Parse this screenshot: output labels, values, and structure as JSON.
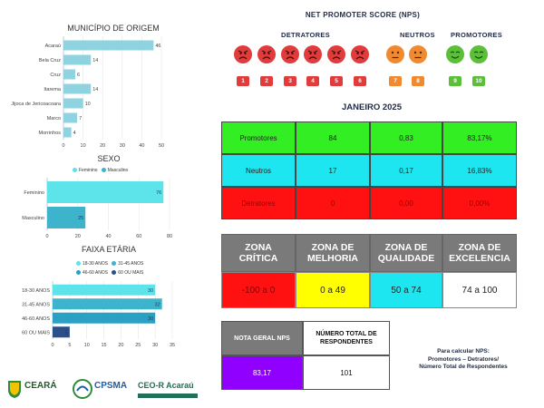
{
  "municipio": {
    "title": "MUNICÍPIO DE ORIGEM",
    "chart_data": {
      "type": "bar",
      "categories": [
        "Acaraú",
        "Bela Cruz",
        "Cruz",
        "Itarema",
        "Jijoca de Jericoacoara",
        "Marco",
        "Morrinhos"
      ],
      "values": [
        46,
        14,
        6,
        14,
        10,
        7,
        4
      ],
      "xlim": [
        0,
        50
      ],
      "xticks": [
        "0",
        "10",
        "20",
        "30",
        "40",
        "50"
      ]
    }
  },
  "sexo": {
    "title": "SEXO",
    "legend": [
      "Feminino",
      "Masculino"
    ],
    "chart_data": {
      "type": "bar",
      "categories": [
        "Feminino",
        "Masculino"
      ],
      "values": [
        76,
        25
      ],
      "colors": [
        "#5de3ea",
        "#3db3cc"
      ],
      "xlim": [
        0,
        80
      ],
      "xticks": [
        "0",
        "20",
        "40",
        "60",
        "80"
      ]
    }
  },
  "faixa": {
    "title": "FAIXA ETÁRIA",
    "legend": [
      "18-30 ANOS",
      "31-45 ANOS",
      "46-60 ANOS",
      "60 OU MAIS"
    ],
    "chart_data": {
      "type": "bar",
      "categories": [
        "18-30 ANOS",
        "31-45 ANOS",
        "46-60 ANOS",
        "60 OU MAIS"
      ],
      "values": [
        30,
        32,
        30,
        5
      ],
      "colors": [
        "#5de3ea",
        "#3db3cc",
        "#2aa0c5",
        "#2b4f8a"
      ],
      "xlim": [
        0,
        35
      ],
      "xticks": [
        "0",
        "5",
        "10",
        "15",
        "20",
        "25",
        "30",
        "35"
      ]
    }
  },
  "nps": {
    "title": "NET PROMOTER SCORE (NPS)",
    "detratores": "DETRATORES",
    "neutros": "NEUTROS",
    "promotores": "PROMOTORES",
    "scores": [
      "1",
      "2",
      "3",
      "4",
      "5",
      "6",
      "7",
      "8",
      "9",
      "10"
    ],
    "colors": {
      "detrator": "#e23b3b",
      "neutro": "#f0892f",
      "promotor": "#5bbf3a"
    }
  },
  "mes": "JANEIRO 2025",
  "resumo": [
    {
      "label": "Promotores",
      "count": "84",
      "ratio": "0,83",
      "pct": "83,17%",
      "color": "#33ee22"
    },
    {
      "label": "Neutros",
      "count": "17",
      "ratio": "0,17",
      "pct": "16,83%",
      "color": "#1de6f0"
    },
    {
      "label": "Detratores",
      "count": "0",
      "ratio": "0,00",
      "pct": "0,00%",
      "color": "#ff1111"
    }
  ],
  "zonas": {
    "headers": [
      "ZONA CRÍTICA",
      "ZONA DE MELHORIA",
      "ZONA DE QUALIDADE",
      "ZONA DE EXCELENCIA"
    ],
    "values": [
      "-100 a 0",
      "0 a 49",
      "50 a 74",
      "74 a 100"
    ],
    "colors": [
      "#ff1111",
      "#ffff00",
      "#1de6f0",
      "#ffffff"
    ]
  },
  "geral": {
    "nota_label": "NOTA GERAL NPS",
    "total_label": "NÚMERO TOTAL DE RESPONDENTES",
    "nota": "83,17",
    "total": "101"
  },
  "formula": [
    "Para calcular NPS:",
    "Promotores – Detratores/",
    "Número Total de Respondentes"
  ],
  "logos": [
    "CEARÁ",
    "CPSMA",
    "CEO-R Acaraú"
  ]
}
